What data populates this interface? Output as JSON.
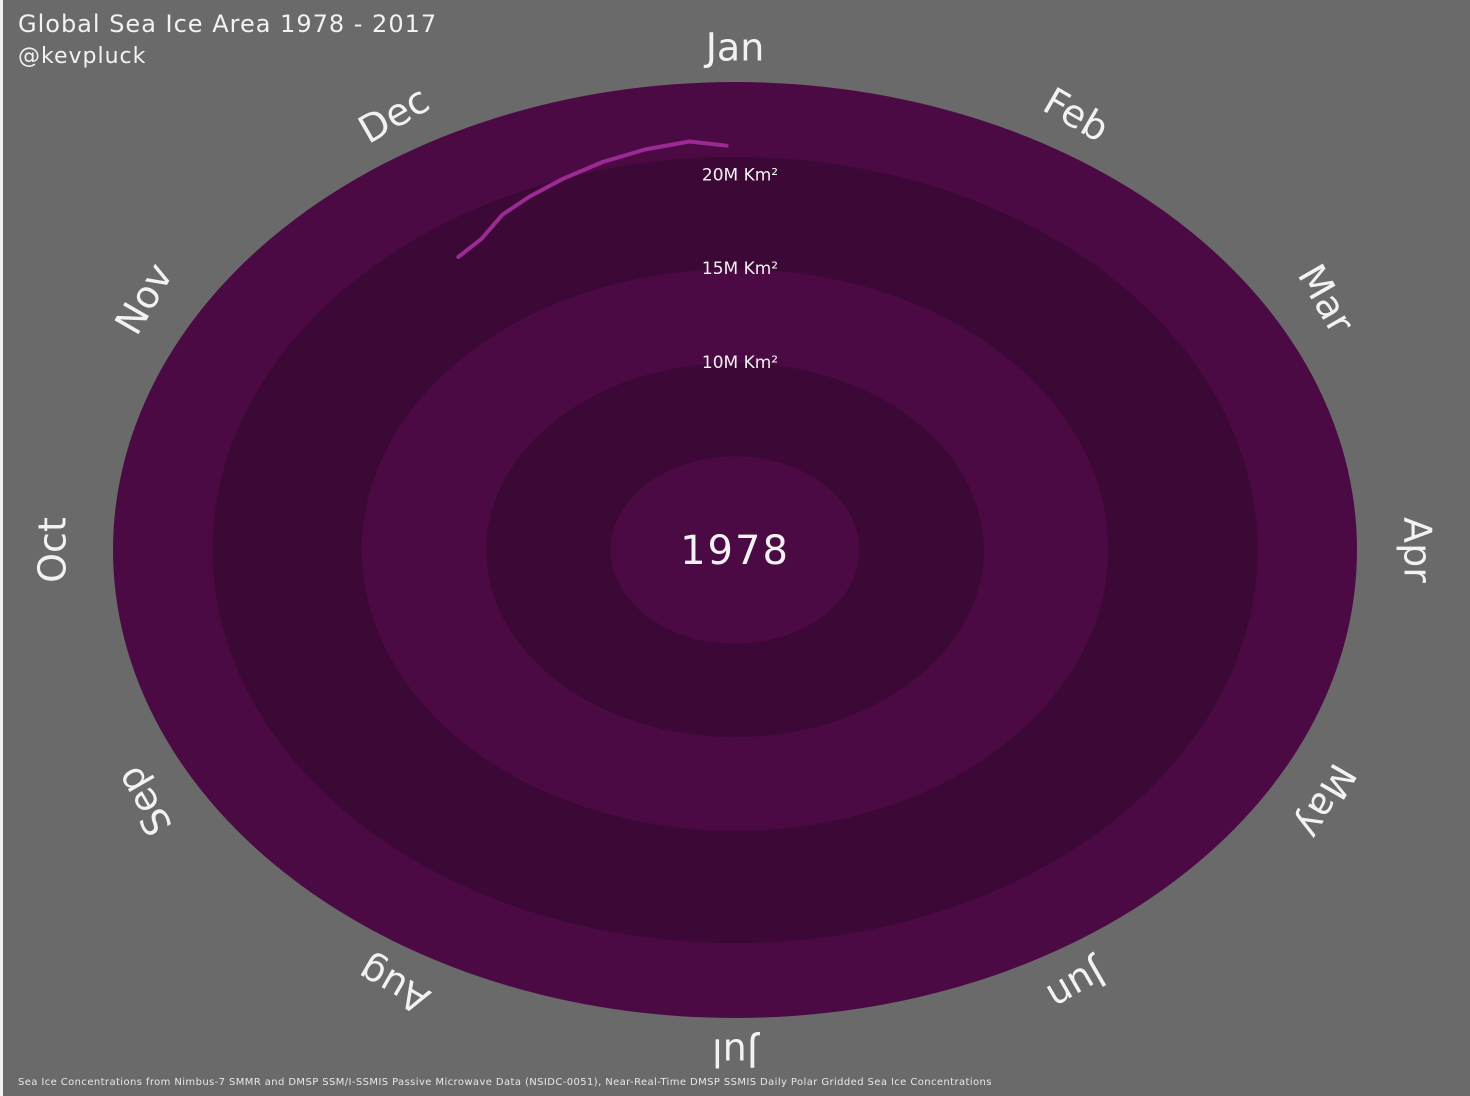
{
  "header": {
    "title": "Global Sea Ice Area 1978 - 2017",
    "author": "@kevpluck"
  },
  "footer": {
    "source": "Sea Ice Concentrations from Nimbus-7 SMMR and DMSP SSM/I-SSMIS Passive Microwave Data (NSIDC-0051), Near-Real-Time DMSP SSMIS Daily Polar Gridded Sea Ice Concentrations"
  },
  "colors": {
    "background": "#6a6a6a",
    "band_light": "#4c0a45",
    "band_dark": "#3c0836",
    "series_line": "#9b2a95",
    "text": "#f2f2f2"
  },
  "chart_data": {
    "type": "line",
    "coordinate_system": "polar",
    "center_label": "1978",
    "months": [
      "Jan",
      "Feb",
      "Mar",
      "Apr",
      "May",
      "Jun",
      "Jul",
      "Aug",
      "Sep",
      "Oct",
      "Nov",
      "Dec"
    ],
    "radial_gridlines": [
      {
        "value": 10,
        "label": "10M Km²"
      },
      {
        "value": 15,
        "label": "15M Km²"
      },
      {
        "value": 20,
        "label": "20M Km²"
      }
    ],
    "r_range": [
      5,
      25
    ],
    "units": "million km²",
    "series": [
      {
        "name": "1978",
        "points": [
          {
            "month": 10.82,
            "value": 19.2
          },
          {
            "month": 10.95,
            "value": 19.5
          },
          {
            "month": 11.08,
            "value": 20.2
          },
          {
            "month": 11.21,
            "value": 20.6
          },
          {
            "month": 11.36,
            "value": 21.0
          },
          {
            "month": 11.52,
            "value": 21.4
          },
          {
            "month": 11.68,
            "value": 21.7
          },
          {
            "month": 11.84,
            "value": 21.9
          },
          {
            "month": 11.97,
            "value": 21.6
          }
        ]
      }
    ]
  }
}
